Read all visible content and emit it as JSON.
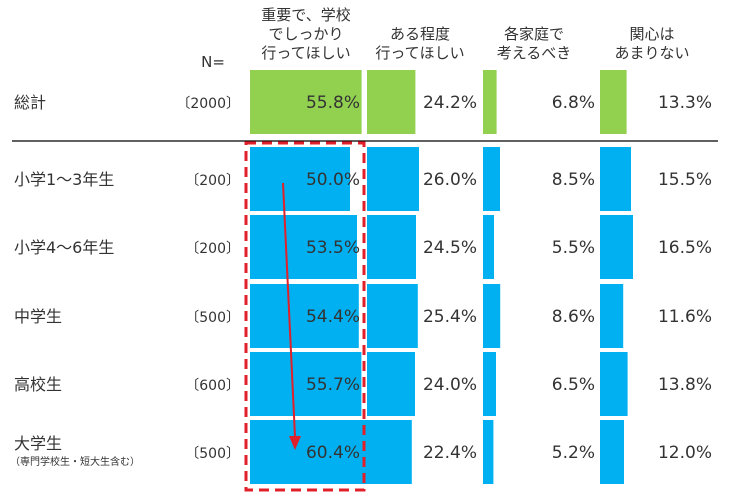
{
  "chart_data": {
    "type": "table",
    "n_header": "N=",
    "columns": [
      {
        "label_lines": [
          "重要で、学校",
          "でしっかり",
          "行ってほしい"
        ]
      },
      {
        "label_lines": [
          "ある程度",
          "行ってほしい"
        ]
      },
      {
        "label_lines": [
          "各家庭で",
          "考えるべき"
        ]
      },
      {
        "label_lines": [
          "関心は",
          "あまりない"
        ]
      }
    ],
    "total": {
      "label": "総計",
      "n": "〔2000〕",
      "values": [
        55.8,
        24.2,
        6.8,
        13.3
      ]
    },
    "rows": [
      {
        "label": "小学1～3年生",
        "n": "〔200〕",
        "values": [
          50.0,
          26.0,
          8.5,
          15.5
        ]
      },
      {
        "label": "小学4～6年生",
        "n": "〔200〕",
        "values": [
          53.5,
          24.5,
          5.5,
          16.5
        ]
      },
      {
        "label": "中学生",
        "n": "〔500〕",
        "values": [
          54.4,
          25.4,
          8.6,
          11.6
        ]
      },
      {
        "label": "高校生",
        "n": "〔600〕",
        "values": [
          55.7,
          24.0,
          6.5,
          13.8
        ]
      },
      {
        "label": "大学生",
        "sublabel": "（専門学校生・短大生含む）",
        "n": "〔500〕",
        "values": [
          60.4,
          22.4,
          5.2,
          12.0
        ]
      }
    ],
    "value_suffix": "%",
    "max_value": 100
  },
  "colors": {
    "total_bar": "#92d050",
    "row_bar": "#00b0f0",
    "highlight_box": "#e0202a",
    "arrow": "#e0202a",
    "text": "#333333",
    "divider": "#000000"
  }
}
